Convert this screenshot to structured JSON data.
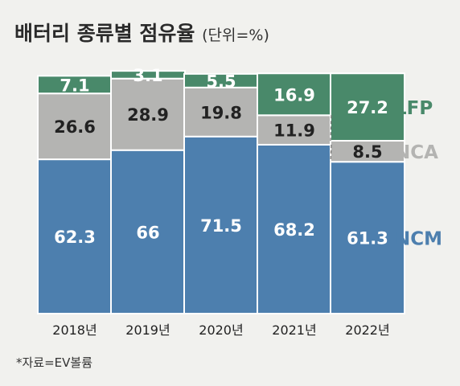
{
  "title": "배터리 종류별 점유율",
  "unit": "(단위=%)",
  "footnote": "*자료=EV볼륨",
  "colors": {
    "NCM": "#4d7fae",
    "NCA": "#b4b4b2",
    "LFP": "#49896a",
    "text_dark": "#222222",
    "text_light": "#ffffff"
  },
  "chart_data": {
    "type": "bar",
    "stacked": true,
    "categories": [
      "2018년",
      "2019년",
      "2020년",
      "2021년",
      "2022년"
    ],
    "series": [
      {
        "name": "NCM",
        "values": [
          62.3,
          66,
          71.5,
          68.2,
          61.3
        ]
      },
      {
        "name": "NCA",
        "values": [
          26.6,
          28.9,
          19.8,
          11.9,
          8.5
        ]
      },
      {
        "name": "LFP",
        "values": [
          7.1,
          3.1,
          5.5,
          16.9,
          27.2
        ]
      }
    ],
    "value_labels": {
      "NCM": [
        "62.3",
        "66",
        "71.5",
        "68.2",
        "61.3"
      ],
      "NCA": [
        "26.6",
        "28.9",
        "19.8",
        "11.9",
        "8.5"
      ],
      "LFP": [
        "7.1",
        "3.1",
        "5.5",
        "16.9",
        "27.2"
      ]
    },
    "ylim": [
      0,
      100
    ],
    "legend": "right",
    "grid": false
  }
}
